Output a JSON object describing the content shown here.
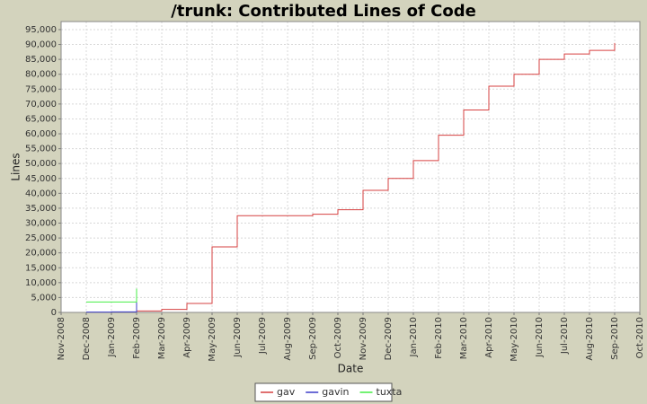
{
  "chart_data": {
    "type": "line",
    "title": "/trunk: Contributed Lines of Code",
    "x_label": "Date",
    "y_label": "Lines",
    "xlim": [
      "Nov-2008",
      "Oct-2010"
    ],
    "xticks": [
      "Nov-2008",
      "Dec-2008",
      "Jan-2009",
      "Feb-2009",
      "Mar-2009",
      "Apr-2009",
      "May-2009",
      "Jun-2009",
      "Jul-2009",
      "Aug-2009",
      "Sep-2009",
      "Oct-2009",
      "Nov-2009",
      "Dec-2009",
      "Jan-2010",
      "Feb-2010",
      "Mar-2010",
      "Apr-2010",
      "May-2010",
      "Jun-2010",
      "Jul-2010",
      "Aug-2010",
      "Sep-2010",
      "Oct-2010"
    ],
    "ylim": [
      0,
      97700
    ],
    "yticks": [
      0,
      {
        "value": 5000,
        "label": "5,000"
      },
      {
        "value": 10000,
        "label": "10,000"
      },
      {
        "value": 15000,
        "label": "15,000"
      },
      {
        "value": 20000,
        "label": "20,000"
      },
      {
        "value": 25000,
        "label": "25,000"
      },
      {
        "value": 30000,
        "label": "30,000"
      },
      {
        "value": 35000,
        "label": "35,000"
      },
      {
        "value": 40000,
        "label": "40,000"
      },
      {
        "value": 45000,
        "label": "45,000"
      },
      {
        "value": 50000,
        "label": "50,000"
      },
      {
        "value": 55000,
        "label": "55,000"
      },
      {
        "value": 60000,
        "label": "60,000"
      },
      {
        "value": 65000,
        "label": "65,000"
      },
      {
        "value": 70000,
        "label": "70,000"
      },
      {
        "value": 75000,
        "label": "75,000"
      },
      {
        "value": 80000,
        "label": "80,000"
      },
      {
        "value": 85000,
        "label": "85,000"
      },
      {
        "value": 90000,
        "label": "90,000"
      },
      {
        "value": 95000,
        "label": "95,000"
      }
    ],
    "grid": true,
    "legend": "bottom",
    "series": [
      {
        "name": "gav",
        "color": "#d64040",
        "x": [
          "Feb-2009",
          "Mar-2009",
          "Apr-2009",
          "May-2009",
          "Jun-2009",
          "Jul-2009",
          "Aug-2009",
          "Sep-2009",
          "Oct-2009",
          "Nov-2009",
          "Dec-2009",
          "Jan-2010",
          "Feb-2010",
          "Mar-2010",
          "Apr-2010",
          "May-2010",
          "Jun-2010",
          "Jul-2010",
          "Aug-2010",
          "Sep-2010"
        ],
        "values": [
          500,
          1000,
          3000,
          22000,
          32500,
          32500,
          32500,
          33000,
          34500,
          41000,
          45000,
          51000,
          59500,
          68000,
          76000,
          80000,
          85000,
          86800,
          88000,
          90500
        ]
      },
      {
        "name": "gavin",
        "color": "#3c3cc8",
        "x": [
          "Dec-2008",
          "Jan-2009",
          "Feb-2009"
        ],
        "values": [
          100,
          200,
          3600
        ]
      },
      {
        "name": "tuxta",
        "color": "#44ee44",
        "x": [
          "Dec-2008",
          "Jan-2009",
          "Feb-2009"
        ],
        "values": [
          3500,
          3500,
          8000
        ]
      }
    ]
  }
}
